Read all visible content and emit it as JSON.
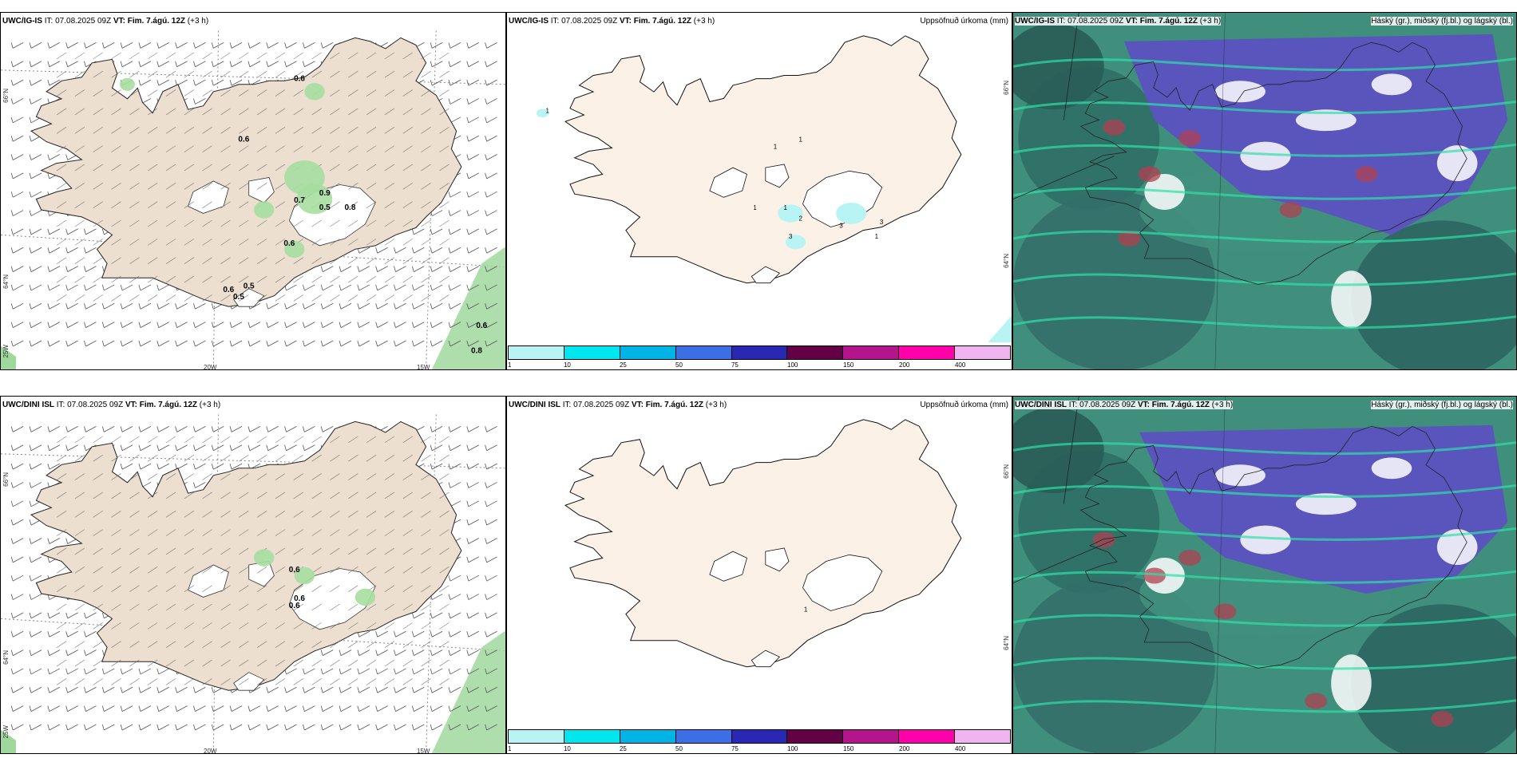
{
  "rows": [
    {
      "model": "UWC/IG-IS",
      "it_label": "IT:",
      "it_value": "07.08.2025 09Z",
      "vt_label": "VT:",
      "vt_value": "Fim. 7.ágú. 12Z",
      "lead": "(+3 h)",
      "wind_values": [
        {
          "text": "0.6"
        },
        {
          "text": "0.6"
        },
        {
          "text": "0.9"
        },
        {
          "text": "0.7"
        },
        {
          "text": "0.5"
        },
        {
          "text": "0.8"
        },
        {
          "text": "0.6"
        },
        {
          "text": "0.6"
        },
        {
          "text": "0.5"
        },
        {
          "text": "0.5"
        },
        {
          "text": "0.6"
        },
        {
          "text": "0.8"
        }
      ],
      "precip_values": [
        "1",
        "1",
        "1",
        "1",
        "2",
        "3",
        "3",
        "3",
        "1",
        "1"
      ]
    },
    {
      "model": "UWC/DINI ISL",
      "it_label": "IT:",
      "it_value": "07.08.2025 09Z",
      "vt_label": "VT:",
      "vt_value": "Fim. 7.ágú. 12Z",
      "lead": "(+3 h)",
      "wind_values": [
        {
          "text": "0.6"
        },
        {
          "text": "0.6"
        },
        {
          "text": "0.6"
        }
      ],
      "precip_values": [
        "1"
      ]
    }
  ],
  "precip_title": "Uppsöfnuð úrkoma (mm)",
  "cloud_title": "Háský (gr.), miðský (fj.bl.) og lágský (bl.)",
  "axis": {
    "lat66": "66°N",
    "lat64": "64°N",
    "lon20": "20W",
    "lon15": "15W",
    "lon25": "25W",
    "lat66_right": "66°N",
    "lat64_right": "64°N"
  },
  "colorbar": {
    "ticks": [
      "1",
      "10",
      "25",
      "50",
      "75",
      "100",
      "150",
      "200",
      "400"
    ],
    "colors": [
      "#b9f4f4",
      "#00e6ef",
      "#00b4e6",
      "#3c6ee6",
      "#2828b4",
      "#640046",
      "#b4148c",
      "#ff00aa",
      "#f0b4f0"
    ]
  }
}
